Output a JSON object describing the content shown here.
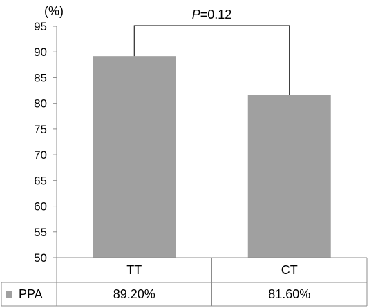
{
  "chart_data": {
    "type": "bar",
    "unit_label": "(%)",
    "categories": [
      "TT",
      "CT"
    ],
    "series": [
      {
        "name": "PPA",
        "values": [
          89.2,
          81.6
        ],
        "value_labels": [
          "89.20%",
          "81.60%"
        ],
        "color": "#a0a0a0"
      }
    ],
    "ylim": [
      50,
      95
    ],
    "yticks": [
      50,
      55,
      60,
      65,
      70,
      75,
      80,
      85,
      90,
      95
    ],
    "grid": false,
    "legend_position": "bottom-left",
    "annotation": {
      "p_label": "P",
      "p_value": "=0.12",
      "between": [
        "TT",
        "CT"
      ]
    }
  }
}
